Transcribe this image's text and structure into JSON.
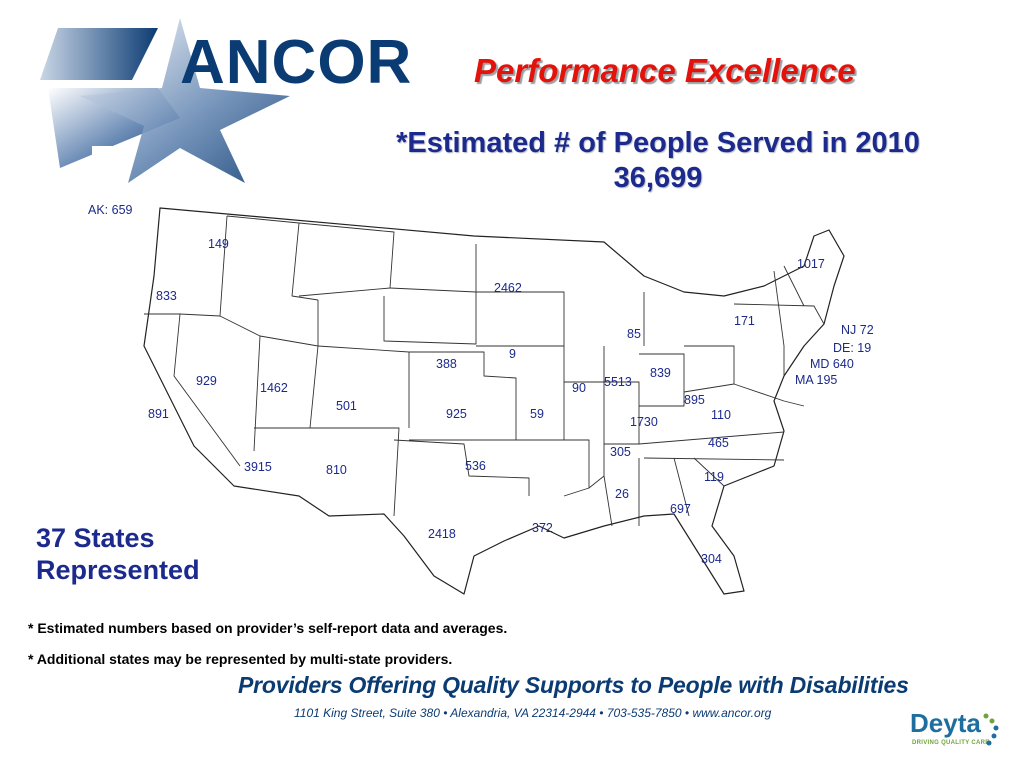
{
  "brand": {
    "logo_text": "ANCOR",
    "primary_color": "#0b3b73"
  },
  "header": {
    "title": "Performance Excellence",
    "subtitle_line1": "*Estimated # of People Served in 2010",
    "subtitle_line2": "36,699"
  },
  "map": {
    "state_labels": [
      {
        "text": "AK: 659"
      },
      {
        "text": "149"
      },
      {
        "text": "833"
      },
      {
        "text": "891"
      },
      {
        "text": "929"
      },
      {
        "text": "1462"
      },
      {
        "text": "3915"
      },
      {
        "text": "501"
      },
      {
        "text": "810"
      },
      {
        "text": "2418"
      },
      {
        "text": "388"
      },
      {
        "text": "925"
      },
      {
        "text": "536"
      },
      {
        "text": "2462"
      },
      {
        "text": "9"
      },
      {
        "text": "59"
      },
      {
        "text": "90"
      },
      {
        "text": "372"
      },
      {
        "text": "85"
      },
      {
        "text": "5513"
      },
      {
        "text": "839"
      },
      {
        "text": "1730"
      },
      {
        "text": "305"
      },
      {
        "text": "26"
      },
      {
        "text": "697"
      },
      {
        "text": "304"
      },
      {
        "text": "119"
      },
      {
        "text": "465"
      },
      {
        "text": "110"
      },
      {
        "text": "895"
      },
      {
        "text": "171"
      },
      {
        "text": "1017"
      },
      {
        "text": "NJ  72"
      },
      {
        "text": "DE: 19"
      },
      {
        "text": "MD 640"
      },
      {
        "text": "MA 195"
      }
    ]
  },
  "summary": {
    "states_line1": "37 States",
    "states_line2": "Represented"
  },
  "notes": [
    "*  Estimated numbers based on provider’s self-report data and averages.",
    "*  Additional states may be represented by multi-state providers."
  ],
  "footer": {
    "tagline": "Providers Offering Quality Supports to People with Disabilities",
    "address": "1101 King Street, Suite 380 • Alexandria, VA 22314-2944 • 703-535-7850 • www.ancor.org"
  },
  "partner": {
    "name": "Deyta",
    "tag": "DRIVING QUALITY CARE"
  }
}
